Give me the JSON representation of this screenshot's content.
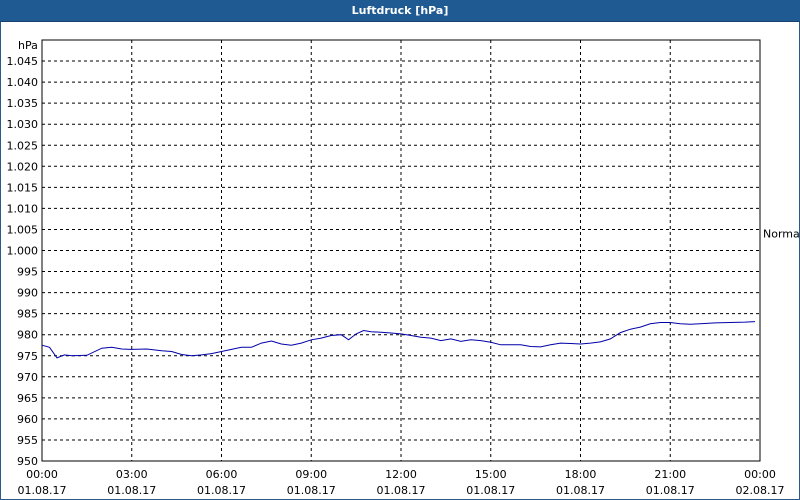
{
  "window": {
    "title": "Luftdruck [hPa]"
  },
  "chart_data": {
    "type": "line",
    "title": "Luftdruck [hPa]",
    "ylabel": "hPa",
    "xlabel": "",
    "ylim": [
      950,
      1050
    ],
    "yticks": [
      950,
      955,
      960,
      965,
      970,
      975,
      980,
      985,
      990,
      995,
      1000,
      1005,
      1010,
      1015,
      1020,
      1025,
      1030,
      1035,
      1040,
      1045
    ],
    "ytick_labels": [
      "950",
      "955",
      "960",
      "965",
      "970",
      "975",
      "980",
      "985",
      "990",
      "995",
      "1.000",
      "1.005",
      "1.010",
      "1.015",
      "1.020",
      "1.025",
      "1.030",
      "1.035",
      "1.040",
      "1.045"
    ],
    "xlim": [
      "01.08.17 00:00",
      "02.08.17 00:00"
    ],
    "xticks": [
      {
        "time": "00:00",
        "date": "01.08.17"
      },
      {
        "time": "03:00",
        "date": "01.08.17"
      },
      {
        "time": "06:00",
        "date": "01.08.17"
      },
      {
        "time": "09:00",
        "date": "01.08.17"
      },
      {
        "time": "12:00",
        "date": "01.08.17"
      },
      {
        "time": "15:00",
        "date": "01.08.17"
      },
      {
        "time": "18:00",
        "date": "01.08.17"
      },
      {
        "time": "21:00",
        "date": "01.08.17"
      },
      {
        "time": "00:00",
        "date": "02.08.17"
      }
    ],
    "grid": true,
    "annotations": [
      {
        "text": "Normal",
        "y": 1005
      }
    ],
    "line_color": "#0000aa",
    "series": [
      {
        "x": [
          "00:00",
          "00:15",
          "00:30",
          "00:45",
          "01:00",
          "01:30",
          "02:00",
          "02:20",
          "02:40",
          "03:00",
          "03:30",
          "04:00",
          "04:20",
          "04:40",
          "05:00",
          "05:20",
          "05:40",
          "06:00",
          "06:20",
          "06:40",
          "07:00",
          "07:20",
          "07:40",
          "08:00",
          "08:20",
          "08:40",
          "09:00",
          "09:20",
          "09:40",
          "10:00",
          "10:15",
          "10:30",
          "10:45",
          "11:00",
          "11:20",
          "11:40",
          "12:00",
          "12:20",
          "12:40",
          "13:00",
          "13:20",
          "13:40",
          "14:00",
          "14:20",
          "14:40",
          "15:00",
          "15:20",
          "15:40",
          "16:00",
          "16:20",
          "16:40",
          "17:00",
          "17:20",
          "17:40",
          "18:00",
          "18:20",
          "18:40",
          "19:00",
          "19:20",
          "19:40",
          "20:00",
          "20:20",
          "20:40",
          "21:00",
          "21:20",
          "21:40",
          "22:00",
          "22:30",
          "23:00",
          "23:30",
          "23:50"
        ],
        "values": [
          977.5,
          977.0,
          974.5,
          975.2,
          975.0,
          975.1,
          976.8,
          977.0,
          976.6,
          976.5,
          976.6,
          976.2,
          976.0,
          975.3,
          975.0,
          975.2,
          975.5,
          976.0,
          976.5,
          977.0,
          977.0,
          978.0,
          978.5,
          977.8,
          977.5,
          978.0,
          978.8,
          979.2,
          979.8,
          980.0,
          978.8,
          980.2,
          981.0,
          980.7,
          980.6,
          980.4,
          980.2,
          979.8,
          979.4,
          979.2,
          978.6,
          979.0,
          978.4,
          978.8,
          978.6,
          978.2,
          977.6,
          977.6,
          977.6,
          977.2,
          977.1,
          977.6,
          978.0,
          977.9,
          977.8,
          978.0,
          978.3,
          979.0,
          980.5,
          981.3,
          981.8,
          982.6,
          982.9,
          982.9,
          982.6,
          982.5,
          982.6,
          982.8,
          982.9,
          983.0,
          983.1
        ]
      }
    ]
  }
}
